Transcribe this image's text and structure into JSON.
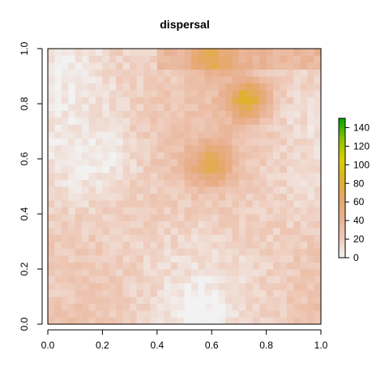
{
  "chart_data": {
    "type": "heatmap",
    "title": "dispersal",
    "xlabel": "",
    "ylabel": "",
    "xlim": [
      0,
      1
    ],
    "ylim": [
      0,
      1
    ],
    "x_ticks": [
      "0.0",
      "0.2",
      "0.4",
      "0.6",
      "0.8",
      "1.0"
    ],
    "y_ticks": [
      "0.0",
      "0.2",
      "0.4",
      "0.6",
      "0.8",
      "1.0"
    ],
    "legend": {
      "position": "right",
      "ticks": [
        "0",
        "20",
        "40",
        "60",
        "80",
        "100",
        "120",
        "140"
      ],
      "zlim": [
        0,
        150
      ],
      "colors": [
        "#f2f2f2",
        "#eec9b8",
        "#e8b090",
        "#e5a868",
        "#dfb22a",
        "#d8d000",
        "#88c000",
        "#00a600"
      ]
    },
    "grid": {
      "nx": 40,
      "ny": 40,
      "value_range": [
        0,
        85
      ],
      "hotspots": [
        {
          "x": 0.73,
          "y": 0.82,
          "value": 85
        },
        {
          "x": 0.6,
          "y": 0.58,
          "value": 70
        },
        {
          "x": 0.6,
          "y": 0.97,
          "value": 60
        }
      ]
    }
  }
}
